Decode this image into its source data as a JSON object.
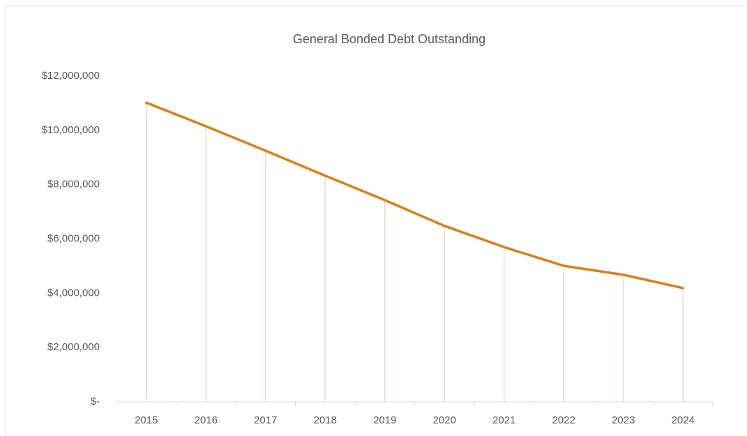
{
  "chart_data": {
    "type": "line",
    "title": "General Bonded Debt Outstanding",
    "categories": [
      "2015",
      "2016",
      "2017",
      "2018",
      "2019",
      "2020",
      "2021",
      "2022",
      "2023",
      "2024"
    ],
    "values": [
      11020000,
      10150000,
      9250000,
      8330000,
      7430000,
      6480000,
      5700000,
      5010000,
      4680000,
      4190000
    ],
    "color": "#d8801c",
    "drop_lines": true,
    "drop_line_color": "#f6d7b4",
    "ylim": [
      0,
      12000000
    ],
    "yticks": [
      {
        "value": 0,
        "label": "$-"
      },
      {
        "value": 2000000,
        "label": "$2,000,000"
      },
      {
        "value": 4000000,
        "label": "$4,000,000"
      },
      {
        "value": 6000000,
        "label": "$6,000,000"
      },
      {
        "value": 8000000,
        "label": "$8,000,000"
      },
      {
        "value": 10000000,
        "label": "$10,000,000"
      },
      {
        "value": 12000000,
        "label": "$12,000,000"
      }
    ],
    "grid": false
  }
}
